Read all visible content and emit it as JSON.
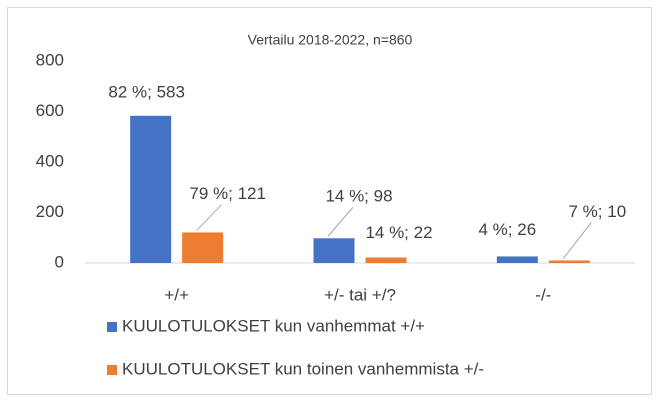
{
  "chart_data": {
    "type": "bar",
    "title": "Vertailu 2018-2022, n=860",
    "categories": [
      "+/+",
      "+/- tai +/?",
      "-/-"
    ],
    "series": [
      {
        "name": "KUULOTULOKSET kun vanhemmat +/+",
        "color": "#4472c4",
        "values": [
          583,
          98,
          26
        ],
        "value_labels": [
          "82 %; 583",
          "14 %; 98",
          "4 %; 26"
        ]
      },
      {
        "name": "KUULOTULOKSET kun toinen vanhemmista +/-",
        "color": "#ed7d31",
        "values": [
          121,
          22,
          10
        ],
        "value_labels": [
          "79 %; 121",
          "14 %; 22",
          "7 %; 10"
        ]
      }
    ],
    "ylim": [
      0,
      800
    ],
    "yticks": [
      0,
      200,
      400,
      600,
      800
    ],
    "grid": false,
    "legend": "bottom"
  }
}
